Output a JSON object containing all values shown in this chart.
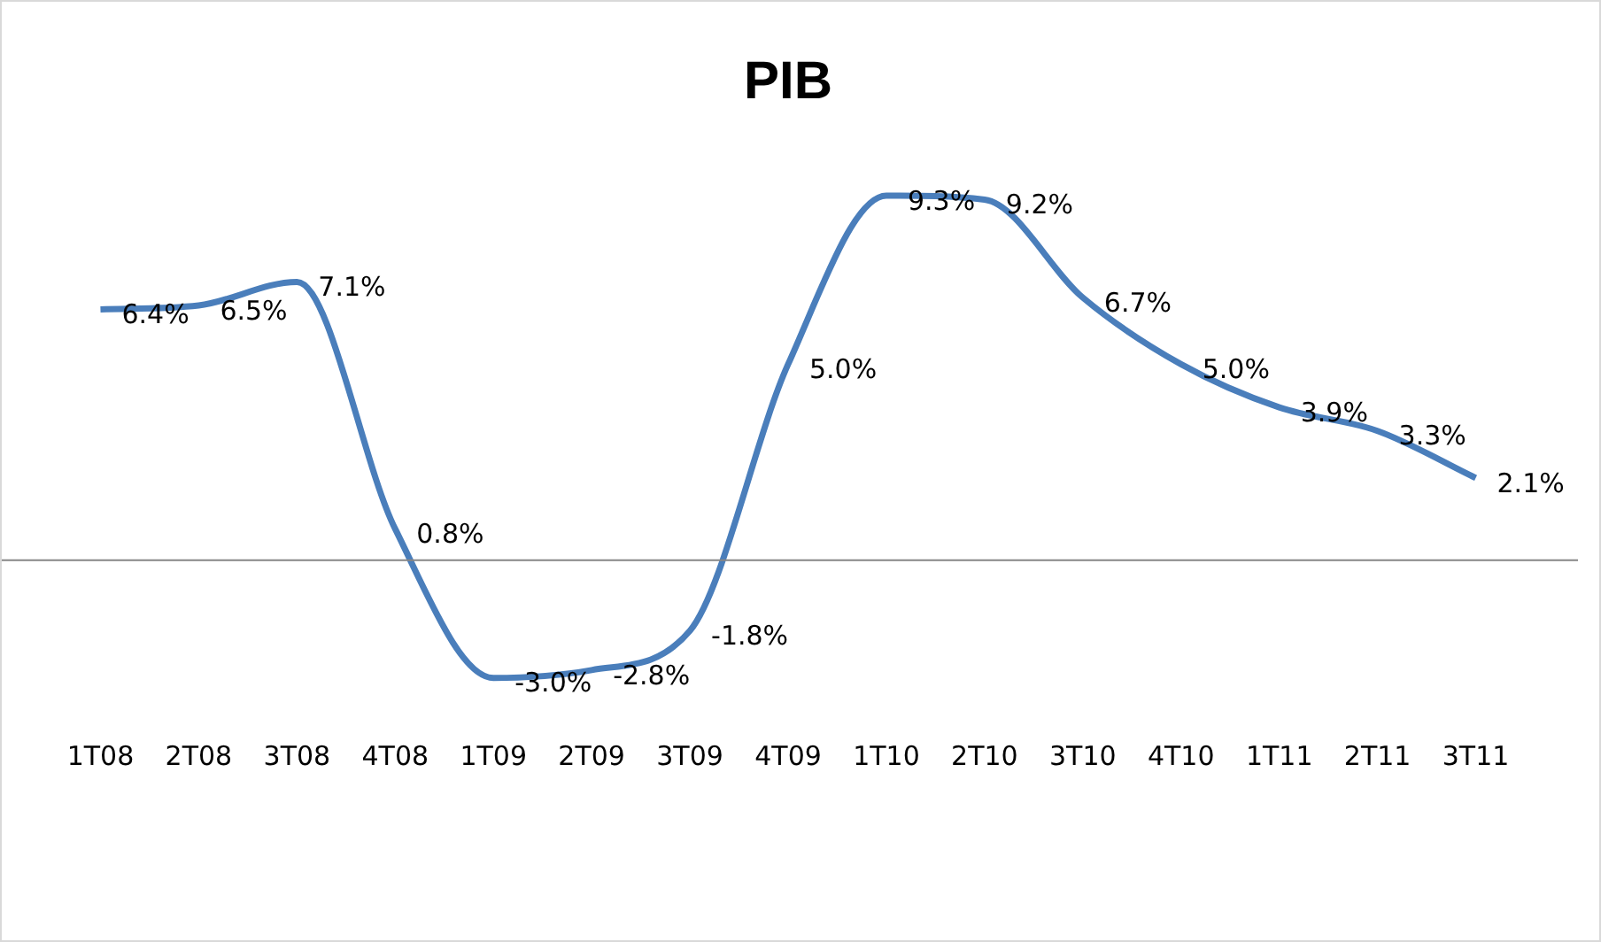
{
  "chart_data": {
    "type": "line",
    "title": "PIB",
    "categories": [
      "1T08",
      "2T08",
      "3T08",
      "4T08",
      "1T09",
      "2T09",
      "3T09",
      "4T09",
      "1T10",
      "2T10",
      "3T10",
      "4T10",
      "1T11",
      "2T11",
      "3T11"
    ],
    "series": [
      {
        "color": "#4a7ebb",
        "values": [
          6.4,
          6.5,
          7.1,
          0.8,
          -3.0,
          -2.8,
          -1.8,
          5.0,
          9.3,
          9.2,
          6.7,
          5.0,
          3.9,
          3.3,
          2.1
        ],
        "value_labels": [
          "6.4%",
          "6.5%",
          "7.1%",
          "0.8%",
          "-3.0%",
          "-2.8%",
          "-1.8%",
          "5.0%",
          "9.3%",
          "9.2%",
          "6.7%",
          "5.0%",
          "3.9%",
          "3.3%",
          "2.1%"
        ]
      }
    ],
    "marker": "none",
    "line_style": "solid",
    "grid": false,
    "legend": false
  }
}
